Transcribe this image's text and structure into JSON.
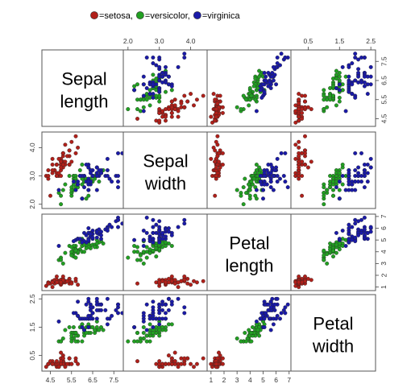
{
  "chart_data": {
    "type": "scatter",
    "kind": "pairs scatterplot matrix",
    "variables": [
      {
        "key": "sepal_length",
        "label": "Sepal length",
        "ticks": [
          4.5,
          5.5,
          6.5,
          7.5
        ],
        "tick_labels": [
          "4.5",
          "5.5",
          "6.5",
          "7.5"
        ],
        "range": [
          4.1,
          8.1
        ]
      },
      {
        "key": "sepal_width",
        "label": "Sepal width",
        "ticks": [
          2.0,
          3.0,
          4.0
        ],
        "tick_labels": [
          "2.0",
          "3.0",
          "4.0"
        ],
        "range": [
          1.85,
          4.55
        ]
      },
      {
        "key": "petal_length",
        "label": "Petal length",
        "ticks": [
          1,
          2,
          3,
          4,
          5,
          6,
          7
        ],
        "tick_labels": [
          "1",
          "2",
          "3",
          "4",
          "5",
          "6",
          "7"
        ],
        "range": [
          0.7,
          7.2
        ]
      },
      {
        "key": "petal_width",
        "label": "Petal width",
        "ticks": [
          0.5,
          1.5,
          2.5
        ],
        "tick_labels": [
          "0.5",
          "1.5",
          "2.5"
        ],
        "range": [
          -0.05,
          2.65
        ]
      }
    ],
    "legend": {
      "placement": "top-center",
      "items": [
        {
          "label": "=setosa,",
          "color": "#b0201a"
        },
        {
          "label": "=versicolor,",
          "color": "#22a022"
        },
        {
          "label": "=virginica",
          "color": "#1a1aa8"
        }
      ]
    },
    "point_columns": [
      "sepal_length",
      "sepal_width",
      "petal_length",
      "petal_width"
    ],
    "series": [
      {
        "species": "setosa",
        "color": "#b0201a",
        "points": [
          [
            5.1,
            3.5,
            1.4,
            0.2
          ],
          [
            4.9,
            3.0,
            1.4,
            0.2
          ],
          [
            4.7,
            3.2,
            1.3,
            0.2
          ],
          [
            4.6,
            3.1,
            1.5,
            0.2
          ],
          [
            5.0,
            3.6,
            1.4,
            0.2
          ],
          [
            5.4,
            3.9,
            1.7,
            0.4
          ],
          [
            4.6,
            3.4,
            1.4,
            0.3
          ],
          [
            5.0,
            3.4,
            1.5,
            0.2
          ],
          [
            4.4,
            2.9,
            1.4,
            0.2
          ],
          [
            4.9,
            3.1,
            1.5,
            0.1
          ],
          [
            5.4,
            3.7,
            1.5,
            0.2
          ],
          [
            4.8,
            3.4,
            1.6,
            0.2
          ],
          [
            4.8,
            3.0,
            1.4,
            0.1
          ],
          [
            4.3,
            3.0,
            1.1,
            0.1
          ],
          [
            5.8,
            4.0,
            1.2,
            0.2
          ],
          [
            5.7,
            4.4,
            1.5,
            0.4
          ],
          [
            5.4,
            3.9,
            1.3,
            0.4
          ],
          [
            5.1,
            3.5,
            1.4,
            0.3
          ],
          [
            5.7,
            3.8,
            1.7,
            0.3
          ],
          [
            5.1,
            3.8,
            1.5,
            0.3
          ],
          [
            5.4,
            3.4,
            1.7,
            0.2
          ],
          [
            5.1,
            3.7,
            1.5,
            0.4
          ],
          [
            4.6,
            3.6,
            1.0,
            0.2
          ],
          [
            5.1,
            3.3,
            1.7,
            0.5
          ],
          [
            4.8,
            3.4,
            1.9,
            0.2
          ],
          [
            5.0,
            3.0,
            1.6,
            0.2
          ],
          [
            5.0,
            3.4,
            1.6,
            0.4
          ],
          [
            5.2,
            3.5,
            1.5,
            0.2
          ],
          [
            5.2,
            3.4,
            1.4,
            0.2
          ],
          [
            4.7,
            3.2,
            1.6,
            0.2
          ],
          [
            4.8,
            3.1,
            1.6,
            0.2
          ],
          [
            5.4,
            3.4,
            1.5,
            0.4
          ],
          [
            5.2,
            4.1,
            1.5,
            0.1
          ],
          [
            5.5,
            4.2,
            1.4,
            0.2
          ],
          [
            4.9,
            3.1,
            1.5,
            0.2
          ],
          [
            5.0,
            3.2,
            1.2,
            0.2
          ],
          [
            5.5,
            3.5,
            1.3,
            0.2
          ],
          [
            4.9,
            3.6,
            1.4,
            0.1
          ],
          [
            4.4,
            3.0,
            1.3,
            0.2
          ],
          [
            5.1,
            3.4,
            1.5,
            0.2
          ],
          [
            5.0,
            3.5,
            1.3,
            0.3
          ],
          [
            4.5,
            2.3,
            1.3,
            0.3
          ],
          [
            4.4,
            3.2,
            1.3,
            0.2
          ],
          [
            5.0,
            3.5,
            1.6,
            0.6
          ],
          [
            5.1,
            3.8,
            1.9,
            0.4
          ],
          [
            4.8,
            3.0,
            1.4,
            0.3
          ],
          [
            5.1,
            3.8,
            1.6,
            0.2
          ],
          [
            4.6,
            3.2,
            1.4,
            0.2
          ],
          [
            5.3,
            3.7,
            1.5,
            0.2
          ],
          [
            5.0,
            3.3,
            1.4,
            0.2
          ]
        ]
      },
      {
        "species": "versicolor",
        "color": "#22a022",
        "points": [
          [
            7.0,
            3.2,
            4.7,
            1.4
          ],
          [
            6.4,
            3.2,
            4.5,
            1.5
          ],
          [
            6.9,
            3.1,
            4.9,
            1.5
          ],
          [
            5.5,
            2.3,
            4.0,
            1.3
          ],
          [
            6.5,
            2.8,
            4.6,
            1.5
          ],
          [
            5.7,
            2.8,
            4.5,
            1.3
          ],
          [
            6.3,
            3.3,
            4.7,
            1.6
          ],
          [
            4.9,
            2.4,
            3.3,
            1.0
          ],
          [
            6.6,
            2.9,
            4.6,
            1.3
          ],
          [
            5.2,
            2.7,
            3.9,
            1.4
          ],
          [
            5.0,
            2.0,
            3.5,
            1.0
          ],
          [
            5.9,
            3.0,
            4.2,
            1.5
          ],
          [
            6.0,
            2.2,
            4.0,
            1.0
          ],
          [
            6.1,
            2.9,
            4.7,
            1.4
          ],
          [
            5.6,
            2.9,
            3.6,
            1.3
          ],
          [
            6.7,
            3.1,
            4.4,
            1.4
          ],
          [
            5.6,
            3.0,
            4.5,
            1.5
          ],
          [
            5.8,
            2.7,
            4.1,
            1.0
          ],
          [
            6.2,
            2.2,
            4.5,
            1.5
          ],
          [
            5.6,
            2.5,
            3.9,
            1.1
          ],
          [
            5.9,
            3.2,
            4.8,
            1.8
          ],
          [
            6.1,
            2.8,
            4.0,
            1.3
          ],
          [
            6.3,
            2.5,
            4.9,
            1.5
          ],
          [
            6.1,
            2.8,
            4.7,
            1.2
          ],
          [
            6.4,
            2.9,
            4.3,
            1.3
          ],
          [
            6.6,
            3.0,
            4.4,
            1.4
          ],
          [
            6.8,
            2.8,
            4.8,
            1.4
          ],
          [
            6.7,
            3.0,
            5.0,
            1.7
          ],
          [
            6.0,
            2.9,
            4.5,
            1.5
          ],
          [
            5.7,
            2.6,
            3.5,
            1.0
          ],
          [
            5.5,
            2.4,
            3.8,
            1.1
          ],
          [
            5.5,
            2.4,
            3.7,
            1.0
          ],
          [
            5.8,
            2.7,
            3.9,
            1.2
          ],
          [
            6.0,
            2.7,
            5.1,
            1.6
          ],
          [
            5.4,
            3.0,
            4.5,
            1.5
          ],
          [
            6.0,
            3.4,
            4.5,
            1.6
          ],
          [
            6.7,
            3.1,
            4.7,
            1.5
          ],
          [
            6.3,
            2.3,
            4.4,
            1.3
          ],
          [
            5.6,
            3.0,
            4.1,
            1.3
          ],
          [
            5.5,
            2.5,
            4.0,
            1.3
          ],
          [
            5.5,
            2.6,
            4.4,
            1.2
          ],
          [
            6.1,
            3.0,
            4.6,
            1.4
          ],
          [
            5.8,
            2.6,
            4.0,
            1.2
          ],
          [
            5.0,
            2.3,
            3.3,
            1.0
          ],
          [
            5.6,
            2.7,
            4.2,
            1.3
          ],
          [
            5.7,
            3.0,
            4.2,
            1.2
          ],
          [
            5.7,
            2.9,
            4.2,
            1.3
          ],
          [
            6.2,
            2.9,
            4.3,
            1.3
          ],
          [
            5.1,
            2.5,
            3.0,
            1.1
          ],
          [
            5.7,
            2.8,
            4.1,
            1.3
          ]
        ]
      },
      {
        "species": "virginica",
        "color": "#1a1aa8",
        "points": [
          [
            6.3,
            3.3,
            6.0,
            2.5
          ],
          [
            5.8,
            2.7,
            5.1,
            1.9
          ],
          [
            7.1,
            3.0,
            5.9,
            2.1
          ],
          [
            6.3,
            2.9,
            5.6,
            1.8
          ],
          [
            6.5,
            3.0,
            5.8,
            2.2
          ],
          [
            7.6,
            3.0,
            6.6,
            2.1
          ],
          [
            4.9,
            2.5,
            4.5,
            1.7
          ],
          [
            7.3,
            2.9,
            6.3,
            1.8
          ],
          [
            6.7,
            2.5,
            5.8,
            1.8
          ],
          [
            7.2,
            3.6,
            6.1,
            2.5
          ],
          [
            6.5,
            3.2,
            5.1,
            2.0
          ],
          [
            6.4,
            2.7,
            5.3,
            1.9
          ],
          [
            6.8,
            3.0,
            5.5,
            2.1
          ],
          [
            5.7,
            2.5,
            5.0,
            2.0
          ],
          [
            5.8,
            2.8,
            5.1,
            2.4
          ],
          [
            6.4,
            3.2,
            5.3,
            2.3
          ],
          [
            6.5,
            3.0,
            5.5,
            1.8
          ],
          [
            7.7,
            3.8,
            6.7,
            2.2
          ],
          [
            7.7,
            2.6,
            6.9,
            2.3
          ],
          [
            6.0,
            2.2,
            5.0,
            1.5
          ],
          [
            6.9,
            3.2,
            5.7,
            2.3
          ],
          [
            5.6,
            2.8,
            4.9,
            2.0
          ],
          [
            7.7,
            2.8,
            6.7,
            2.0
          ],
          [
            6.3,
            2.7,
            4.9,
            1.8
          ],
          [
            6.7,
            3.3,
            5.7,
            2.1
          ],
          [
            7.2,
            3.2,
            6.0,
            1.8
          ],
          [
            6.2,
            2.8,
            4.8,
            1.8
          ],
          [
            6.1,
            3.0,
            4.9,
            1.8
          ],
          [
            6.4,
            2.8,
            5.6,
            2.1
          ],
          [
            7.2,
            3.0,
            5.8,
            1.6
          ],
          [
            7.4,
            2.8,
            6.1,
            1.9
          ],
          [
            7.9,
            3.8,
            6.4,
            2.0
          ],
          [
            6.4,
            2.8,
            5.6,
            2.2
          ],
          [
            6.3,
            2.8,
            5.1,
            1.5
          ],
          [
            6.1,
            2.6,
            5.6,
            1.4
          ],
          [
            7.7,
            3.0,
            6.1,
            2.3
          ],
          [
            6.3,
            3.4,
            5.6,
            2.4
          ],
          [
            6.4,
            3.1,
            5.5,
            1.8
          ],
          [
            6.0,
            3.0,
            4.8,
            1.8
          ],
          [
            6.9,
            3.1,
            5.4,
            2.1
          ],
          [
            6.7,
            3.1,
            5.6,
            2.4
          ],
          [
            6.9,
            3.1,
            5.1,
            2.3
          ],
          [
            5.8,
            2.7,
            5.1,
            1.9
          ],
          [
            6.8,
            3.2,
            5.9,
            2.3
          ],
          [
            6.7,
            3.3,
            5.7,
            2.5
          ],
          [
            6.7,
            3.0,
            5.2,
            2.3
          ],
          [
            6.3,
            2.5,
            5.0,
            1.9
          ],
          [
            6.5,
            3.0,
            5.2,
            2.0
          ],
          [
            6.2,
            3.4,
            5.4,
            2.3
          ],
          [
            5.9,
            3.0,
            5.1,
            1.8
          ]
        ]
      }
    ],
    "grid": false
  }
}
